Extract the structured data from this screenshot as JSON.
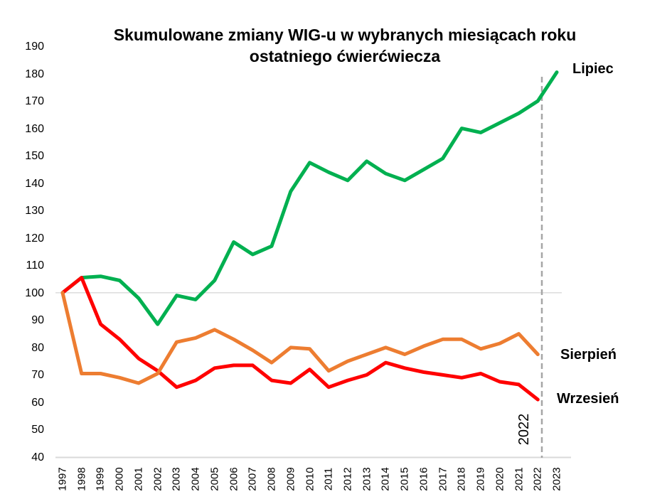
{
  "title": {
    "line1": "Skumulowane zmiany WIG-u w wybranych miesiącach roku",
    "line2": "ostatniego ćwierćwiecza"
  },
  "chart_data": {
    "type": "line",
    "x": [
      1997,
      1998,
      1999,
      2000,
      2001,
      2002,
      2003,
      2004,
      2005,
      2006,
      2007,
      2008,
      2009,
      2010,
      2011,
      2012,
      2013,
      2014,
      2015,
      2016,
      2017,
      2018,
      2019,
      2020,
      2021,
      2022,
      2023
    ],
    "x_tick_labels": [
      "1997",
      "1998",
      "1999",
      "2000",
      "2001",
      "2002",
      "2003",
      "2004",
      "2005",
      "2006",
      "2007",
      "2008",
      "2009",
      "2010",
      "2011",
      "2012",
      "2013",
      "2014",
      "2015",
      "2016",
      "2017",
      "2018",
      "2019",
      "2020",
      "2021",
      "2022",
      "2023"
    ],
    "y_axis": {
      "min": 40,
      "max": 190,
      "tick_step": 10,
      "tick_labels": [
        "190",
        "180",
        "170",
        "160",
        "150",
        "140",
        "130",
        "120",
        "110",
        "100",
        "90",
        "80",
        "70",
        "60",
        "50",
        "40"
      ]
    },
    "baseline_gridline_value": 100,
    "series": [
      {
        "name": "Lipiec",
        "color": "#00B050",
        "values": [
          100,
          105.5,
          106,
          104.5,
          98,
          88.5,
          99,
          97.5,
          104.5,
          118.5,
          114,
          117,
          137,
          147.5,
          144,
          141,
          148,
          143.5,
          141,
          145,
          149,
          160,
          158.5,
          162,
          165.5,
          170,
          180.5
        ]
      },
      {
        "name": "Sierpień",
        "color": "#ED7D31",
        "values": [
          100,
          70.5,
          70.5,
          69,
          67,
          70.5,
          82,
          83.5,
          86.5,
          83,
          79,
          74.5,
          80,
          79.5,
          71.5,
          75,
          77.5,
          80,
          77.5,
          80.5,
          83,
          83,
          79.5,
          81.5,
          85,
          77.5,
          null
        ]
      },
      {
        "name": "Wrzesień",
        "color": "#FF0000",
        "values": [
          100,
          105.5,
          88.5,
          83,
          76,
          71.5,
          65.5,
          68,
          72.5,
          73.5,
          73.5,
          68,
          67,
          72,
          65.5,
          68,
          70,
          74.5,
          72.5,
          71,
          70,
          69,
          70.5,
          67.5,
          66.5,
          61,
          null
        ]
      }
    ],
    "annotation": {
      "label": "2022",
      "line_style": "dashed",
      "line_color": "#A6A6A6",
      "at_x": 2022
    },
    "legend_position": "right-of-line-ends",
    "grid": "single-horizontal-line-at-100",
    "colors": {
      "gridline": "#D9D9D9",
      "axis_line": "#D9D9D9",
      "text": "#000000"
    }
  }
}
